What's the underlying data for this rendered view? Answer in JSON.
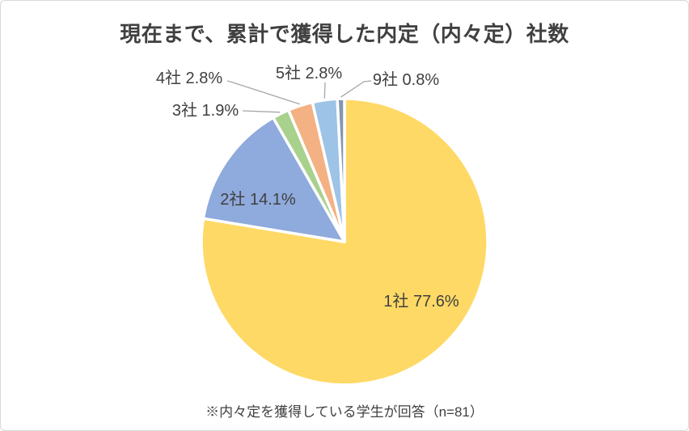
{
  "title": "現在まで、累計で獲得した内定（内々定）社数",
  "footnote": "※内々定を獲得している学生が回答（n=81）",
  "chart_data": {
    "type": "pie",
    "title": "現在まで、累計で獲得した内定（内々定）社数",
    "annotation": "※内々定を獲得している学生が回答（n=81）",
    "unit": "%",
    "n": 81,
    "start_angle_deg": 0,
    "direction": "clockwise",
    "legend": "none",
    "categories": [
      "1社",
      "2社",
      "3社",
      "4社",
      "5社",
      "9社"
    ],
    "values": [
      77.6,
      14.1,
      1.9,
      2.8,
      2.8,
      0.8
    ],
    "slices": [
      {
        "label": "1社",
        "pct": 77.6,
        "color": "#FFD966",
        "label_placement": "inside"
      },
      {
        "label": "2社",
        "pct": 14.1,
        "color": "#8FAADC",
        "label_placement": "inside"
      },
      {
        "label": "3社",
        "pct": 1.9,
        "color": "#A9D18E",
        "label_placement": "outside"
      },
      {
        "label": "4社",
        "pct": 2.8,
        "color": "#F4B183",
        "label_placement": "outside"
      },
      {
        "label": "5社",
        "pct": 2.8,
        "color": "#9DC3E6",
        "label_placement": "outside"
      },
      {
        "label": "9社",
        "pct": 0.8,
        "color": "#8497B0",
        "label_placement": "outside"
      }
    ],
    "colors": {
      "slice_border": "#FFFFFF",
      "leader_line": "#A6A6A6",
      "text": "#404040",
      "frame_border": "#D9D9D9",
      "background": "#FFFFFF"
    }
  }
}
